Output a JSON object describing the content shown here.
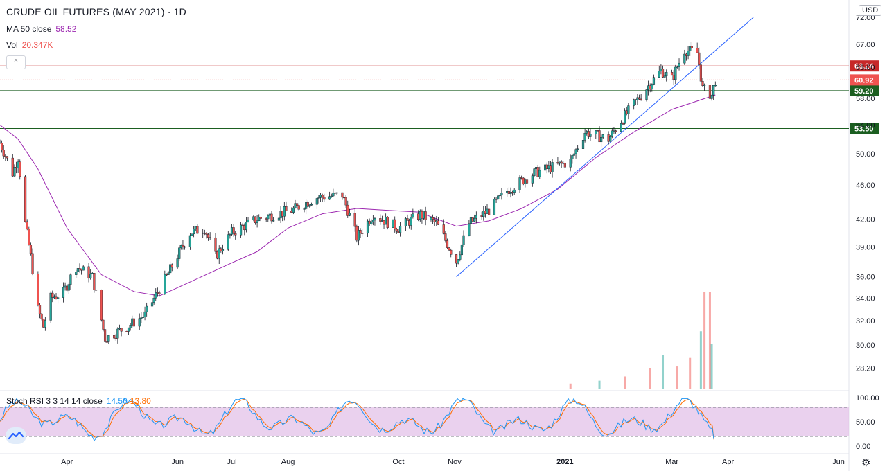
{
  "header": {
    "title": "CRUDE OIL FUTURES (MAY 2021) · 1D",
    "ma_label": "MA 50 close",
    "ma_value": "58.52",
    "vol_label": "Vol",
    "vol_value": "20.347K",
    "collapse_glyph": "^"
  },
  "stoch": {
    "label": "Stoch RSI 3 3 14 14 close",
    "k_value": "14.50",
    "d_value": "13.80"
  },
  "currency": "USD",
  "settings_icon": "gear-icon",
  "logo_icon": "tradingview-logo-icon",
  "colors": {
    "up": "#26a69a",
    "down": "#ef5350",
    "ma": "#9c27b0",
    "trend": "#2962ff",
    "stoch_k": "#2196f3",
    "stoch_d": "#ff6d00",
    "band": "#e1bee7",
    "resistance": "#c62828",
    "support": "#1b5e20"
  },
  "chart_data": [
    {
      "type": "candlestick",
      "title": "CRUDE OIL FUTURES (MAY 2021) · 1D",
      "y_scale": "log",
      "y_ticks": [
        28.2,
        30.0,
        32.0,
        34.0,
        36.0,
        39.0,
        42.0,
        46.0,
        50.0,
        54.0,
        58.0,
        63.0,
        67.0,
        72.0
      ],
      "x_ticks": [
        "Apr",
        "Jun",
        "Jul",
        "Aug",
        "Oct",
        "Nov",
        "2021",
        "Mar",
        "Apr",
        "Jun"
      ],
      "price_path": [
        {
          "x": "2020-02-24",
          "y": 51.5
        },
        {
          "x": "2020-03-02",
          "y": 47.5
        },
        {
          "x": "2020-03-05",
          "y": 49.5
        },
        {
          "x": "2020-03-09",
          "y": 41.5
        },
        {
          "x": "2020-03-12",
          "y": 38.0
        },
        {
          "x": "2020-03-16",
          "y": 33.0
        },
        {
          "x": "2020-03-19",
          "y": 31.5
        },
        {
          "x": "2020-03-23",
          "y": 34.0
        },
        {
          "x": "2020-03-30",
          "y": 34.5
        },
        {
          "x": "2020-04-06",
          "y": 37.0
        },
        {
          "x": "2020-04-15",
          "y": 36.0
        },
        {
          "x": "2020-04-22",
          "y": 30.5
        },
        {
          "x": "2020-05-04",
          "y": 31.5
        },
        {
          "x": "2020-05-14",
          "y": 32.5
        },
        {
          "x": "2020-05-26",
          "y": 36.0
        },
        {
          "x": "2020-06-08",
          "y": 40.5
        },
        {
          "x": "2020-06-16",
          "y": 41.0
        },
        {
          "x": "2020-06-22",
          "y": 38.0
        },
        {
          "x": "2020-07-01",
          "y": 40.5
        },
        {
          "x": "2020-07-15",
          "y": 42.0
        },
        {
          "x": "2020-08-03",
          "y": 43.0
        },
        {
          "x": "2020-08-17",
          "y": 44.5
        },
        {
          "x": "2020-08-31",
          "y": 44.8
        },
        {
          "x": "2020-09-08",
          "y": 40.0
        },
        {
          "x": "2020-09-17",
          "y": 42.5
        },
        {
          "x": "2020-10-01",
          "y": 41.0
        },
        {
          "x": "2020-10-13",
          "y": 42.5
        },
        {
          "x": "2020-10-22",
          "y": 41.5
        },
        {
          "x": "2020-11-02",
          "y": 37.5
        },
        {
          "x": "2020-11-09",
          "y": 41.5
        },
        {
          "x": "2020-11-20",
          "y": 43.0
        },
        {
          "x": "2020-12-01",
          "y": 45.5
        },
        {
          "x": "2020-12-15",
          "y": 47.5
        },
        {
          "x": "2021-01-04",
          "y": 49.0
        },
        {
          "x": "2021-01-12",
          "y": 53.0
        },
        {
          "x": "2021-01-25",
          "y": 52.0
        },
        {
          "x": "2021-02-02",
          "y": 55.0
        },
        {
          "x": "2021-02-12",
          "y": 58.5
        },
        {
          "x": "2021-02-23",
          "y": 62.5
        },
        {
          "x": "2021-03-01",
          "y": 61.0
        },
        {
          "x": "2021-03-08",
          "y": 66.0
        },
        {
          "x": "2021-03-15",
          "y": 65.5
        },
        {
          "x": "2021-03-18",
          "y": 59.5
        },
        {
          "x": "2021-03-23",
          "y": 58.5
        },
        {
          "x": "2021-03-25",
          "y": 60.9
        }
      ],
      "ma50": [
        {
          "x": "2020-02-24",
          "y": 54.0
        },
        {
          "x": "2020-03-05",
          "y": 52.0
        },
        {
          "x": "2020-03-16",
          "y": 48.0
        },
        {
          "x": "2020-04-01",
          "y": 41.0
        },
        {
          "x": "2020-04-20",
          "y": 36.2
        },
        {
          "x": "2020-05-08",
          "y": 34.6
        },
        {
          "x": "2020-05-22",
          "y": 34.2
        },
        {
          "x": "2020-06-08",
          "y": 35.5
        },
        {
          "x": "2020-06-29",
          "y": 37.2
        },
        {
          "x": "2020-07-15",
          "y": 38.5
        },
        {
          "x": "2020-08-01",
          "y": 41.0
        },
        {
          "x": "2020-08-20",
          "y": 42.6
        },
        {
          "x": "2020-09-08",
          "y": 43.2
        },
        {
          "x": "2020-09-24",
          "y": 43.0
        },
        {
          "x": "2020-10-12",
          "y": 42.8
        },
        {
          "x": "2020-11-02",
          "y": 41.2
        },
        {
          "x": "2020-11-20",
          "y": 41.8
        },
        {
          "x": "2020-12-08",
          "y": 43.2
        },
        {
          "x": "2020-12-28",
          "y": 45.5
        },
        {
          "x": "2021-01-18",
          "y": 49.5
        },
        {
          "x": "2021-02-08",
          "y": 53.0
        },
        {
          "x": "2021-03-01",
          "y": 56.3
        },
        {
          "x": "2021-03-25",
          "y": 58.52
        }
      ],
      "horizontal_levels": [
        {
          "value": 63.24,
          "label": "63.24",
          "role": "resistance"
        },
        {
          "value": 59.2,
          "label": "59.20",
          "role": "support"
        },
        {
          "value": 53.5,
          "label": "53.50",
          "role": "support"
        }
      ],
      "last_price": {
        "value": 60.92,
        "label": "60.92"
      },
      "trendline": [
        {
          "x": "2020-11-02",
          "y": 36.0
        },
        {
          "x": "2021-04-15",
          "y": 72.0
        }
      ],
      "volume": [
        {
          "x": "2021-01-04",
          "y": 2.0
        },
        {
          "x": "2021-01-20",
          "y": 3.0
        },
        {
          "x": "2021-02-03",
          "y": 4.5
        },
        {
          "x": "2021-02-17",
          "y": 7.5
        },
        {
          "x": "2021-02-24",
          "y": 12.0
        },
        {
          "x": "2021-03-04",
          "y": 8.0
        },
        {
          "x": "2021-03-11",
          "y": 11.0
        },
        {
          "x": "2021-03-17",
          "y": 20.347
        },
        {
          "x": "2021-03-19",
          "y": 34.0
        },
        {
          "x": "2021-03-22",
          "y": 34.0
        },
        {
          "x": "2021-03-23",
          "y": 16.0
        }
      ]
    },
    {
      "type": "line",
      "title": "Stoch RSI 3 3 14 14 close",
      "y_ticks": [
        0.0,
        50.0,
        100.0
      ],
      "band": [
        20,
        80
      ],
      "last_k": 14.5,
      "last_d": 13.8
    }
  ]
}
